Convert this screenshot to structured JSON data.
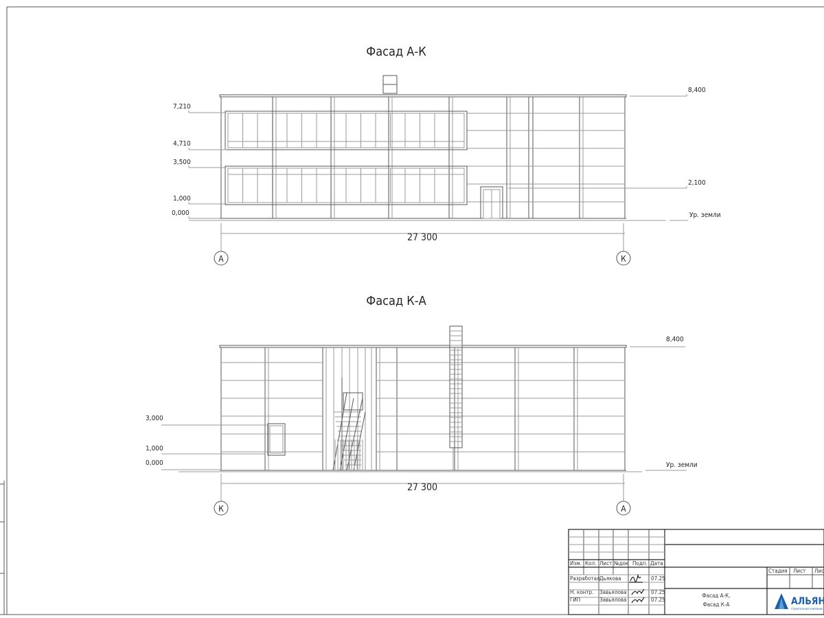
{
  "facade_top": {
    "title": "Фасад А-К",
    "levels_left": [
      "7,210",
      "4,710",
      "3,500",
      "1,000",
      "0,000"
    ],
    "levels_right": [
      "8,400",
      "2,100",
      "Ур. земли"
    ],
    "dimension": "27 300",
    "axis_left": "А",
    "axis_right": "К"
  },
  "facade_bottom": {
    "title": "Фасад К-А",
    "levels_left": [
      "3,000",
      "1,000",
      "0,000"
    ],
    "levels_right": [
      "8,400",
      "Ур. земли"
    ],
    "dimension": "27 300",
    "axis_left": "К",
    "axis_right": "А"
  },
  "title_block": {
    "headers": [
      "Изм.",
      "Кол.",
      "Лист",
      "№док",
      "Подп.",
      "Дата"
    ],
    "rows": [
      {
        "role": "Разработал",
        "name": "Дьякова",
        "date": "07.25"
      },
      {
        "role": "Н. контр.",
        "name": "Завьялова",
        "date": "07.25"
      },
      {
        "role": "ГИП",
        "name": "Завьялова",
        "date": "07.25"
      }
    ],
    "stage_headers": [
      "Стадия",
      "Лист",
      "Листов"
    ],
    "sheet_title_1": "Фасад А-К,",
    "sheet_title_2": "Фасад К-А",
    "logo_text": "АЛЬЯНС",
    "logo_subtext": "строительная компания",
    "logo_color": "#1f5fa8"
  }
}
